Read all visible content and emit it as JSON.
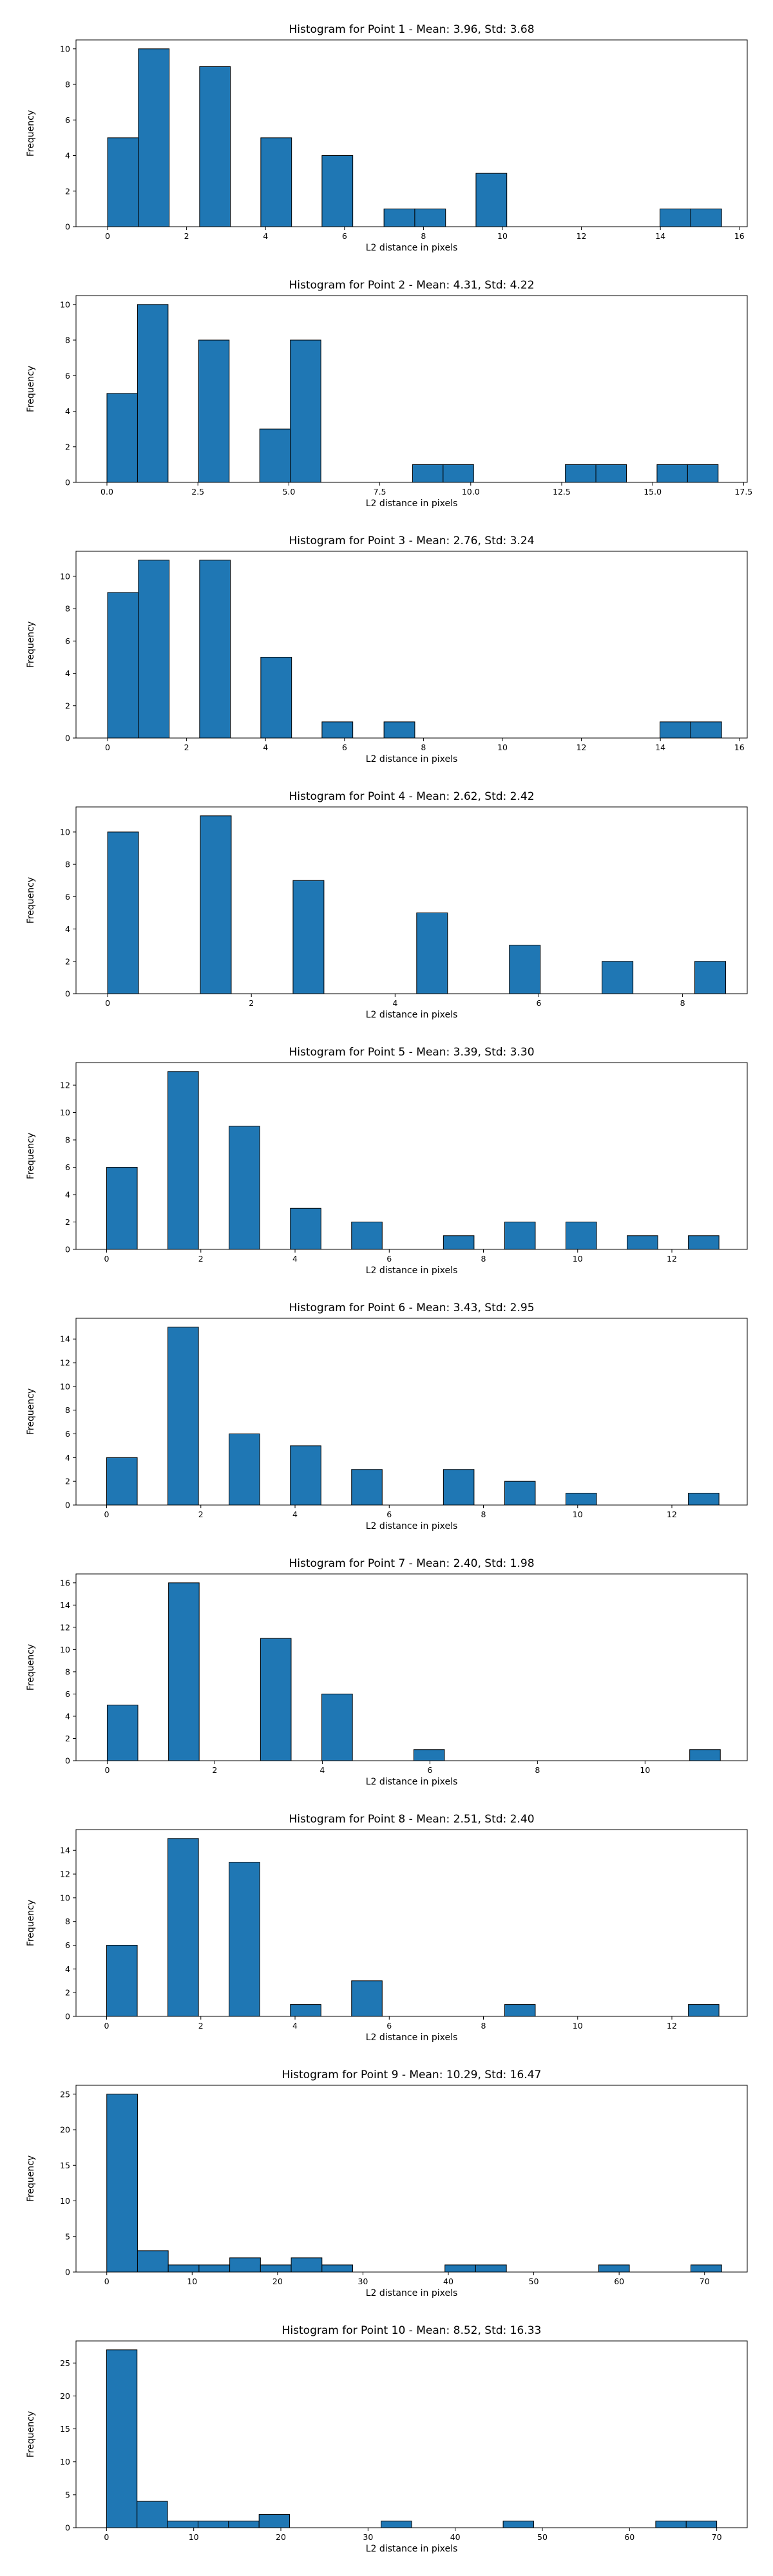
{
  "chart_data": [
    {
      "type": "bar",
      "title": "Histogram for Point 1 - Mean: 3.96, Std: 3.68",
      "xlabel": "L2 distance in pixels",
      "ylabel": "Frequency",
      "xlim": [
        -0.8,
        16.2
      ],
      "ylim": [
        0,
        10.5
      ],
      "xticks": [
        0,
        2,
        4,
        6,
        8,
        10,
        12,
        14,
        16
      ],
      "yticks": [
        0,
        2,
        4,
        6,
        8,
        10
      ],
      "bin_width": 0.78,
      "bins": [
        {
          "x0": 0.0,
          "count": 5
        },
        {
          "x0": 0.78,
          "count": 10
        },
        {
          "x0": 2.33,
          "count": 9
        },
        {
          "x0": 3.88,
          "count": 5
        },
        {
          "x0": 5.43,
          "count": 4
        },
        {
          "x0": 7.0,
          "count": 1
        },
        {
          "x0": 7.78,
          "count": 1
        },
        {
          "x0": 9.33,
          "count": 3
        },
        {
          "x0": 13.99,
          "count": 1
        },
        {
          "x0": 14.77,
          "count": 1
        }
      ]
    },
    {
      "type": "bar",
      "title": "Histogram for Point 2 - Mean: 4.31, Std: 4.22",
      "xlabel": "L2 distance in pixels",
      "ylabel": "Frequency",
      "xlim": [
        -0.85,
        17.6
      ],
      "ylim": [
        0,
        10.5
      ],
      "xticks": [
        0.0,
        2.5,
        5.0,
        7.5,
        10.0,
        12.5,
        15.0,
        17.5
      ],
      "xtick_labels": [
        "0.0",
        "2.5",
        "5.0",
        "7.5",
        "10.0",
        "12.5",
        "15.0",
        "17.5"
      ],
      "yticks": [
        0,
        2,
        4,
        6,
        8,
        10
      ],
      "bin_width": 0.84,
      "bins": [
        {
          "x0": 0.0,
          "count": 5
        },
        {
          "x0": 0.84,
          "count": 10
        },
        {
          "x0": 2.52,
          "count": 8
        },
        {
          "x0": 4.2,
          "count": 3
        },
        {
          "x0": 5.04,
          "count": 8
        },
        {
          "x0": 8.4,
          "count": 1
        },
        {
          "x0": 9.24,
          "count": 1
        },
        {
          "x0": 12.6,
          "count": 1
        },
        {
          "x0": 13.44,
          "count": 1
        },
        {
          "x0": 15.12,
          "count": 1
        },
        {
          "x0": 15.96,
          "count": 1
        }
      ]
    },
    {
      "type": "bar",
      "title": "Histogram for Point 3 - Mean: 2.76, Std: 3.24",
      "xlabel": "L2 distance in pixels",
      "ylabel": "Frequency",
      "xlim": [
        -0.8,
        16.2
      ],
      "ylim": [
        0,
        11.55
      ],
      "xticks": [
        0,
        2,
        4,
        6,
        8,
        10,
        12,
        14,
        16
      ],
      "yticks": [
        0,
        2,
        4,
        6,
        8,
        10
      ],
      "bin_width": 0.78,
      "bins": [
        {
          "x0": 0.0,
          "count": 9
        },
        {
          "x0": 0.78,
          "count": 11
        },
        {
          "x0": 2.33,
          "count": 11
        },
        {
          "x0": 3.88,
          "count": 5
        },
        {
          "x0": 5.43,
          "count": 1
        },
        {
          "x0": 7.0,
          "count": 1
        },
        {
          "x0": 13.99,
          "count": 1
        },
        {
          "x0": 14.77,
          "count": 1
        }
      ]
    },
    {
      "type": "bar",
      "title": "Histogram for Point 4 - Mean: 2.62, Std: 2.42",
      "xlabel": "L2 distance in pixels",
      "ylabel": "Frequency",
      "xlim": [
        -0.44,
        8.9
      ],
      "ylim": [
        0,
        11.55
      ],
      "xticks": [
        0,
        2,
        4,
        6,
        8
      ],
      "yticks": [
        0,
        2,
        4,
        6,
        8,
        10
      ],
      "bin_width": 0.43,
      "bins": [
        {
          "x0": 0.0,
          "count": 10
        },
        {
          "x0": 1.29,
          "count": 11
        },
        {
          "x0": 2.58,
          "count": 7
        },
        {
          "x0": 4.3,
          "count": 5
        },
        {
          "x0": 5.59,
          "count": 3
        },
        {
          "x0": 6.88,
          "count": 2
        },
        {
          "x0": 8.17,
          "count": 2
        }
      ]
    },
    {
      "type": "bar",
      "title": "Histogram for Point 5 - Mean: 3.39, Std: 3.30",
      "xlabel": "L2 distance in pixels",
      "ylabel": "Frequency",
      "xlim": [
        -0.65,
        13.6
      ],
      "ylim": [
        0,
        13.65
      ],
      "xticks": [
        0,
        2,
        4,
        6,
        8,
        10,
        12
      ],
      "yticks": [
        0,
        2,
        4,
        6,
        8,
        10,
        12
      ],
      "bin_width": 0.65,
      "bins": [
        {
          "x0": 0.0,
          "count": 6
        },
        {
          "x0": 1.3,
          "count": 13
        },
        {
          "x0": 2.6,
          "count": 9
        },
        {
          "x0": 3.9,
          "count": 3
        },
        {
          "x0": 5.2,
          "count": 2
        },
        {
          "x0": 7.15,
          "count": 1
        },
        {
          "x0": 8.45,
          "count": 2
        },
        {
          "x0": 9.75,
          "count": 2
        },
        {
          "x0": 11.05,
          "count": 1
        },
        {
          "x0": 12.35,
          "count": 1
        }
      ]
    },
    {
      "type": "bar",
      "title": "Histogram for Point 6 - Mean: 3.43, Std: 2.95",
      "xlabel": "L2 distance in pixels",
      "ylabel": "Frequency",
      "xlim": [
        -0.65,
        13.6
      ],
      "ylim": [
        0,
        15.75
      ],
      "xticks": [
        0,
        2,
        4,
        6,
        8,
        10,
        12
      ],
      "yticks": [
        0,
        2,
        4,
        6,
        8,
        10,
        12,
        14
      ],
      "bin_width": 0.65,
      "bins": [
        {
          "x0": 0.0,
          "count": 4
        },
        {
          "x0": 1.3,
          "count": 15
        },
        {
          "x0": 2.6,
          "count": 6
        },
        {
          "x0": 3.9,
          "count": 5
        },
        {
          "x0": 5.2,
          "count": 3
        },
        {
          "x0": 7.15,
          "count": 3
        },
        {
          "x0": 8.45,
          "count": 2
        },
        {
          "x0": 9.75,
          "count": 1
        },
        {
          "x0": 12.35,
          "count": 1
        }
      ]
    },
    {
      "type": "bar",
      "title": "Histogram for Point 7 - Mean: 2.40, Std: 1.98",
      "xlabel": "L2 distance in pixels",
      "ylabel": "Frequency",
      "xlim": [
        -0.58,
        11.9
      ],
      "ylim": [
        0,
        16.8
      ],
      "xticks": [
        0,
        2,
        4,
        6,
        8,
        10
      ],
      "yticks": [
        0,
        2,
        4,
        6,
        8,
        10,
        12,
        14,
        16
      ],
      "bin_width": 0.57,
      "bins": [
        {
          "x0": 0.0,
          "count": 5
        },
        {
          "x0": 1.14,
          "count": 16
        },
        {
          "x0": 2.85,
          "count": 11
        },
        {
          "x0": 3.99,
          "count": 6
        },
        {
          "x0": 5.7,
          "count": 1
        },
        {
          "x0": 10.83,
          "count": 1
        }
      ]
    },
    {
      "type": "bar",
      "title": "Histogram for Point 8 - Mean: 2.51, Std: 2.40",
      "xlabel": "L2 distance in pixels",
      "ylabel": "Frequency",
      "xlim": [
        -0.65,
        13.6
      ],
      "ylim": [
        0,
        15.75
      ],
      "xticks": [
        0,
        2,
        4,
        6,
        8,
        10,
        12
      ],
      "yticks": [
        0,
        2,
        4,
        6,
        8,
        10,
        12,
        14
      ],
      "bin_width": 0.65,
      "bins": [
        {
          "x0": 0.0,
          "count": 6
        },
        {
          "x0": 1.3,
          "count": 15
        },
        {
          "x0": 2.6,
          "count": 13
        },
        {
          "x0": 3.9,
          "count": 1
        },
        {
          "x0": 5.2,
          "count": 3
        },
        {
          "x0": 8.45,
          "count": 1
        },
        {
          "x0": 12.35,
          "count": 1
        }
      ]
    },
    {
      "type": "bar",
      "title": "Histogram for Point 9 - Mean: 10.29, Std: 16.47",
      "xlabel": "L2 distance in pixels",
      "ylabel": "Frequency",
      "xlim": [
        -3.6,
        75.0
      ],
      "ylim": [
        0,
        26.25
      ],
      "xticks": [
        0,
        10,
        20,
        30,
        40,
        50,
        60,
        70
      ],
      "yticks": [
        0,
        5,
        10,
        15,
        20,
        25
      ],
      "bin_width": 3.6,
      "bins": [
        {
          "x0": 0.0,
          "count": 25
        },
        {
          "x0": 3.6,
          "count": 3
        },
        {
          "x0": 7.2,
          "count": 1
        },
        {
          "x0": 10.8,
          "count": 1
        },
        {
          "x0": 14.4,
          "count": 2
        },
        {
          "x0": 18.0,
          "count": 1
        },
        {
          "x0": 21.6,
          "count": 2
        },
        {
          "x0": 25.2,
          "count": 1
        },
        {
          "x0": 39.6,
          "count": 1
        },
        {
          "x0": 43.2,
          "count": 1
        },
        {
          "x0": 57.6,
          "count": 1
        },
        {
          "x0": 68.4,
          "count": 1
        }
      ]
    },
    {
      "type": "bar",
      "title": "Histogram for Point 10 - Mean: 8.52, Std: 16.33",
      "xlabel": "L2 distance in pixels",
      "ylabel": "Frequency",
      "xlim": [
        -3.5,
        73.5
      ],
      "ylim": [
        0,
        28.35
      ],
      "xticks": [
        0,
        10,
        20,
        30,
        40,
        50,
        60,
        70
      ],
      "yticks": [
        0,
        5,
        10,
        15,
        20,
        25
      ],
      "bin_width": 3.5,
      "bins": [
        {
          "x0": 0.0,
          "count": 27
        },
        {
          "x0": 3.5,
          "count": 4
        },
        {
          "x0": 7.0,
          "count": 1
        },
        {
          "x0": 10.5,
          "count": 1
        },
        {
          "x0": 14.0,
          "count": 1
        },
        {
          "x0": 17.5,
          "count": 2
        },
        {
          "x0": 31.5,
          "count": 1
        },
        {
          "x0": 45.5,
          "count": 1
        },
        {
          "x0": 63.0,
          "count": 1
        },
        {
          "x0": 66.5,
          "count": 1
        }
      ]
    }
  ],
  "colors": {
    "bar_fill": "#1f77b4",
    "bar_edge": "#000000",
    "axis": "#000000",
    "background": "#ffffff"
  }
}
